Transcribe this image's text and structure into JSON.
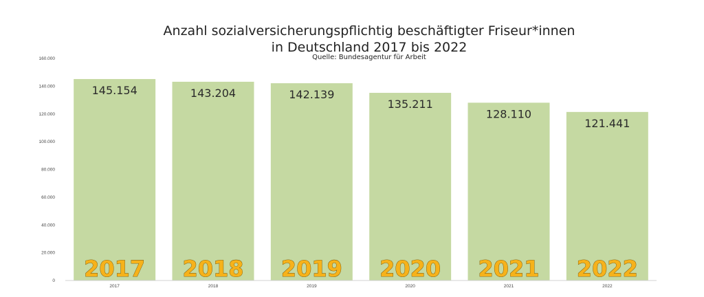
{
  "chart_data": {
    "type": "bar",
    "title_line1": "Anzahl sozialversicherungspflichtig beschäftigter Friseur*innen",
    "title_line2": "in Deutschland 2017 bis 2022",
    "subtitle": "Quelle: Bundesagentur für Arbeit",
    "categories": [
      "2017",
      "2018",
      "2019",
      "2020",
      "2021",
      "2022"
    ],
    "values": [
      145154,
      143204,
      142139,
      135211,
      128110,
      121441
    ],
    "data_labels": [
      "145.154",
      "143.204",
      "142.139",
      "135.211",
      "128.110",
      "121.441"
    ],
    "big_year_labels": [
      "2017",
      "2018",
      "2019",
      "2020",
      "2021",
      "2022"
    ],
    "ylim": [
      0,
      160000
    ],
    "yticks": [
      0,
      20000,
      40000,
      60000,
      80000,
      100000,
      120000,
      140000,
      160000
    ],
    "ytick_labels": [
      "0",
      "20.000",
      "40.000",
      "60.000",
      "80.000",
      "100.000",
      "120.000",
      "140.000",
      "160.000"
    ],
    "grid": false,
    "legend": "none",
    "bar_color": "#c5d9a2",
    "big_label_color": "#f6b21b"
  }
}
